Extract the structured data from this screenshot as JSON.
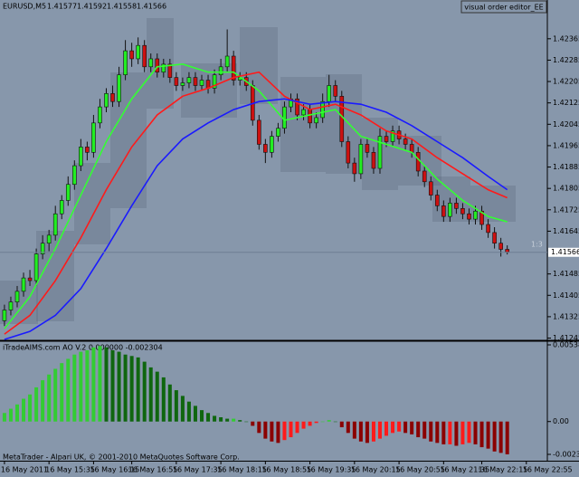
{
  "editor_label": "visual order editor_EE",
  "ratio_label": "1:3",
  "footer": "MetaTrader - Alpari UK, © 2001-2010 MetaQuotes Software Corp.",
  "chart_data": [
    {
      "type": "candlestick",
      "title": "EURUSD,M5",
      "candles": [
        [
          1.4131,
          1.4137,
          1.4129,
          1.4135
        ],
        [
          1.4135,
          1.414,
          1.4133,
          1.4138
        ],
        [
          1.4138,
          1.4144,
          1.4136,
          1.4142
        ],
        [
          1.4142,
          1.4149,
          1.414,
          1.4147
        ],
        [
          1.4147,
          1.415,
          1.4144,
          1.4146
        ],
        [
          1.4146,
          1.4158,
          1.4144,
          1.4156
        ],
        [
          1.4156,
          1.4163,
          1.4154,
          1.416
        ],
        [
          1.416,
          1.4165,
          1.4157,
          1.4163
        ],
        [
          1.4163,
          1.4174,
          1.4161,
          1.4171
        ],
        [
          1.4171,
          1.4178,
          1.4169,
          1.4176
        ],
        [
          1.4176,
          1.4185,
          1.4174,
          1.4182
        ],
        [
          1.4182,
          1.4191,
          1.418,
          1.4189
        ],
        [
          1.4189,
          1.4199,
          1.4187,
          1.4196
        ],
        [
          1.4196,
          1.4198,
          1.4191,
          1.4194
        ],
        [
          1.4194,
          1.4208,
          1.4192,
          1.4205
        ],
        [
          1.4205,
          1.4214,
          1.4203,
          1.4211
        ],
        [
          1.4211,
          1.4218,
          1.4209,
          1.4216
        ],
        [
          1.4216,
          1.4219,
          1.4211,
          1.4213
        ],
        [
          1.4213,
          1.4226,
          1.4211,
          1.4223
        ],
        [
          1.4223,
          1.4236,
          1.4221,
          1.4232
        ],
        [
          1.4232,
          1.4235,
          1.4226,
          1.4229
        ],
        [
          1.4229,
          1.4237,
          1.4227,
          1.4234
        ],
        [
          1.4234,
          1.4236,
          1.4224,
          1.4226
        ],
        [
          1.4226,
          1.4231,
          1.4224,
          1.4229
        ],
        [
          1.4229,
          1.4231,
          1.4222,
          1.4224
        ],
        [
          1.4224,
          1.4229,
          1.4222,
          1.4227
        ],
        [
          1.4227,
          1.4229,
          1.422,
          1.4222
        ],
        [
          1.4222,
          1.4224,
          1.4217,
          1.4219
        ],
        [
          1.4219,
          1.4222,
          1.4217,
          1.422
        ],
        [
          1.422,
          1.4224,
          1.4218,
          1.4222
        ],
        [
          1.4222,
          1.4224,
          1.4217,
          1.4219
        ],
        [
          1.4219,
          1.4223,
          1.4217,
          1.4221
        ],
        [
          1.4221,
          1.4223,
          1.4216,
          1.4218
        ],
        [
          1.4218,
          1.4225,
          1.4216,
          1.4223
        ],
        [
          1.4223,
          1.4229,
          1.4221,
          1.4226
        ],
        [
          1.4226,
          1.424,
          1.4224,
          1.423
        ],
        [
          1.423,
          1.4232,
          1.4219,
          1.4221
        ],
        [
          1.4221,
          1.4224,
          1.4219,
          1.4222
        ],
        [
          1.4222,
          1.4224,
          1.4217,
          1.4219
        ],
        [
          1.4219,
          1.4221,
          1.4204,
          1.4206
        ],
        [
          1.4206,
          1.4208,
          1.4195,
          1.4197
        ],
        [
          1.4197,
          1.4199,
          1.419,
          1.4194
        ],
        [
          1.4194,
          1.4202,
          1.4192,
          1.42
        ],
        [
          1.42,
          1.4205,
          1.4198,
          1.4203
        ],
        [
          1.4203,
          1.4213,
          1.4201,
          1.4211
        ],
        [
          1.4211,
          1.4216,
          1.4209,
          1.4214
        ],
        [
          1.4214,
          1.4216,
          1.4206,
          1.4208
        ],
        [
          1.4208,
          1.4212,
          1.4206,
          1.421
        ],
        [
          1.421,
          1.4212,
          1.4203,
          1.4205
        ],
        [
          1.4205,
          1.4209,
          1.4203,
          1.4207
        ],
        [
          1.4207,
          1.4216,
          1.4205,
          1.4213
        ],
        [
          1.4213,
          1.4223,
          1.4211,
          1.4219
        ],
        [
          1.4219,
          1.4221,
          1.4213,
          1.4215
        ],
        [
          1.4215,
          1.4217,
          1.4196,
          1.4198
        ],
        [
          1.4198,
          1.42,
          1.4188,
          1.419
        ],
        [
          1.419,
          1.4192,
          1.4183,
          1.4186
        ],
        [
          1.4186,
          1.4199,
          1.4184,
          1.4197
        ],
        [
          1.4197,
          1.4199,
          1.4192,
          1.4194
        ],
        [
          1.4194,
          1.4196,
          1.4186,
          1.4188
        ],
        [
          1.4188,
          1.4203,
          1.4186,
          1.42
        ],
        [
          1.42,
          1.4202,
          1.4196,
          1.4198
        ],
        [
          1.4198,
          1.4204,
          1.4196,
          1.4202
        ],
        [
          1.4202,
          1.4204,
          1.4197,
          1.4199
        ],
        [
          1.4199,
          1.4201,
          1.4195,
          1.4197
        ],
        [
          1.4197,
          1.4199,
          1.4192,
          1.4194
        ],
        [
          1.4194,
          1.4196,
          1.4185,
          1.4187
        ],
        [
          1.4187,
          1.4189,
          1.4181,
          1.4183
        ],
        [
          1.4183,
          1.4185,
          1.4176,
          1.4178
        ],
        [
          1.4178,
          1.418,
          1.4172,
          1.4174
        ],
        [
          1.4174,
          1.4176,
          1.4168,
          1.417
        ],
        [
          1.417,
          1.4177,
          1.4168,
          1.4175
        ],
        [
          1.4175,
          1.4177,
          1.4171,
          1.4173
        ],
        [
          1.4173,
          1.4175,
          1.4169,
          1.4171
        ],
        [
          1.4171,
          1.4173,
          1.4167,
          1.4169
        ],
        [
          1.4169,
          1.4174,
          1.4167,
          1.4172
        ],
        [
          1.4172,
          1.4174,
          1.4165,
          1.4167
        ],
        [
          1.4167,
          1.4169,
          1.4162,
          1.4164
        ],
        [
          1.4164,
          1.4166,
          1.4158,
          1.416
        ],
        [
          1.416,
          1.4162,
          1.4155,
          1.41577
        ],
        [
          1.41577,
          1.41592,
          1.41558,
          1.41566
        ]
      ],
      "up_color": "#22ee22",
      "down_color": "#cc1111",
      "series": [
        {
          "color": "#33ff33",
          "x": [
            0,
            4,
            8,
            12,
            16,
            20,
            24,
            28,
            32,
            36,
            40,
            44,
            48,
            52,
            56,
            60,
            64,
            68,
            72,
            76,
            79
          ],
          "values": [
            1.4128,
            1.414,
            1.4158,
            1.4178,
            1.4198,
            1.4214,
            1.4226,
            1.4227,
            1.4224,
            1.4224,
            1.4217,
            1.4206,
            1.4208,
            1.421,
            1.42,
            1.4197,
            1.4194,
            1.4184,
            1.4176,
            1.417,
            1.4168
          ]
        },
        {
          "color": "#ff1a1a",
          "x": [
            0,
            4,
            8,
            12,
            16,
            20,
            24,
            28,
            32,
            36,
            40,
            44,
            48,
            52,
            56,
            60,
            64,
            68,
            72,
            76,
            79
          ],
          "values": [
            1.4126,
            1.4133,
            1.4146,
            1.4162,
            1.418,
            1.4196,
            1.4208,
            1.4215,
            1.4218,
            1.4222,
            1.4224,
            1.4215,
            1.421,
            1.4212,
            1.4208,
            1.4202,
            1.4199,
            1.4192,
            1.4186,
            1.418,
            1.4177
          ]
        },
        {
          "color": "#1a1aff",
          "x": [
            0,
            4,
            8,
            12,
            16,
            20,
            24,
            28,
            32,
            36,
            40,
            44,
            48,
            52,
            56,
            60,
            64,
            68,
            72,
            76,
            79
          ],
          "values": [
            1.4124,
            1.4127,
            1.4133,
            1.4143,
            1.4158,
            1.4174,
            1.4189,
            1.4199,
            1.4205,
            1.421,
            1.4213,
            1.4214,
            1.4212,
            1.4213,
            1.4212,
            1.4209,
            1.4204,
            1.4198,
            1.4192,
            1.4185,
            1.418
          ]
        }
      ],
      "xlim": [
        -0.7,
        85.3
      ],
      "ylim": [
        1.4124,
        1.4251
      ],
      "yticks": [
        1.42365,
        1.42285,
        1.42205,
        1.42125,
        1.42045,
        1.41965,
        1.41885,
        1.41805,
        1.41725,
        1.41645,
        1.41485,
        1.41405,
        1.41325,
        1.41245
      ]
    },
    {
      "type": "bar",
      "title": "iTradeAIMS.com AO V.2 0.000000 -0.002304",
      "values": [
        0.0006,
        0.0009,
        0.0012,
        0.0016,
        0.0019,
        0.0024,
        0.0029,
        0.0033,
        0.0037,
        0.0041,
        0.0044,
        0.0047,
        0.0049,
        0.005,
        0.0052,
        0.0053,
        0.0052,
        0.005,
        0.0049,
        0.0047,
        0.0046,
        0.0045,
        0.0042,
        0.0038,
        0.0035,
        0.0031,
        0.0026,
        0.0022,
        0.0018,
        0.0014,
        0.0011,
        0.0008,
        0.0006,
        0.0004,
        0.0003,
        0.0002,
        0.0002,
        0.0001,
        0.0,
        -0.0003,
        -0.0008,
        -0.0012,
        -0.0014,
        -0.0015,
        -0.0013,
        -0.0011,
        -0.0008,
        -0.0005,
        -0.0003,
        -0.0001,
        0.0,
        0.0001,
        0.0,
        -0.0004,
        -0.0008,
        -0.0012,
        -0.0014,
        -0.0015,
        -0.0014,
        -0.0012,
        -0.001,
        -0.0008,
        -0.0007,
        -0.0008,
        -0.0009,
        -0.0011,
        -0.0012,
        -0.0014,
        -0.0015,
        -0.0016,
        -0.0016,
        -0.0017,
        -0.0016,
        -0.0015,
        -0.0016,
        -0.0018,
        -0.0019,
        -0.0021,
        -0.0022,
        -0.0023
      ],
      "colors": {
        "positive_up": "#33cc33",
        "positive_down": "#0f660f",
        "negative_up": "#ff1a1a",
        "negative_down": "#8b0000"
      },
      "xlim": [
        -0.7,
        85.3
      ],
      "ylim": [
        -0.002304,
        0.005382
      ],
      "yticks": [
        0.005382,
        {
          "value": 0,
          "label": "0.00"
        },
        -0.002304
      ],
      "xticks": [
        {
          "value": 0,
          "label": "16 May 2011"
        },
        {
          "value": 7,
          "label": "16 May 15:35"
        },
        {
          "value": 14,
          "label": "16 May 16:15"
        },
        {
          "value": 20,
          "label": "16 May 16:55"
        },
        {
          "value": 27,
          "label": "16 May 17:35"
        },
        {
          "value": 34,
          "label": "16 May 18:15"
        },
        {
          "value": 41,
          "label": "16 May 18:55"
        },
        {
          "value": 48,
          "label": "16 May 19:35"
        },
        {
          "value": 55,
          "label": "16 May 20:15"
        },
        {
          "value": 62,
          "label": "16 May 20:55"
        },
        {
          "value": 69,
          "label": "16 May 21:35"
        },
        {
          "value": 75,
          "label": "16 May 22:15"
        },
        {
          "value": 82,
          "label": "16 May 22:55"
        }
      ]
    }
  ]
}
